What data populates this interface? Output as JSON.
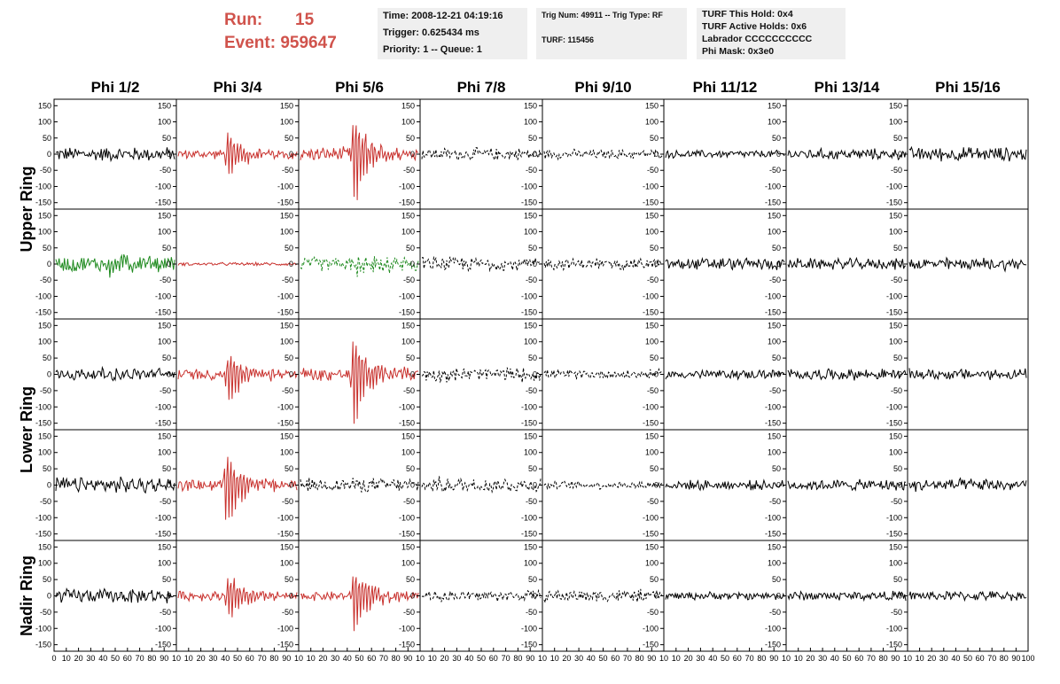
{
  "header": {
    "run_label": "Run:",
    "run_value": "15",
    "event_label": "Event:",
    "event_value": "959647",
    "time": "Time: 2008-12-21 04:19:16",
    "trigger": "Trigger: 0.625434 ms",
    "priority": "Priority: 1 -- Queue: 1",
    "trig_num": "Trig Num: 49911 -- Trig Type: RF",
    "turf": "TURF: 115456",
    "turf_this_hold": "TURF This Hold: 0x4",
    "turf_active_holds": "TURF Active Holds: 0x6",
    "labrador": "Labrador CCCCCCCCCC",
    "phi_mask": "Phi Mask: 0x3e0"
  },
  "colors": {
    "black": "#000000",
    "red": "#c8302c",
    "green": "#1e8a1e",
    "run_text": "#d0534c",
    "box_bg": "#efefef"
  },
  "chart_data": {
    "type": "line",
    "columns": [
      "Phi 1/2",
      "Phi 3/4",
      "Phi 5/6",
      "Phi 7/8",
      "Phi 9/10",
      "Phi 11/12",
      "Phi 13/14",
      "Phi 15/16"
    ],
    "rows": [
      "Upper Ring",
      "Lower Ring",
      "Nadir Ring"
    ],
    "row_label_spans": [
      2,
      2,
      1
    ],
    "ylim": [
      -170,
      170
    ],
    "xlim": [
      0,
      100
    ],
    "y_ticks": [
      -150,
      -100,
      -50,
      0,
      50,
      100,
      150
    ],
    "x_ticks_per_panel": [
      0,
      10,
      20,
      30,
      40,
      50,
      60,
      70,
      80,
      90,
      100
    ],
    "x_tick_labels_first": [
      "0",
      "10",
      "20",
      "30",
      "40",
      "50",
      "60",
      "70",
      "80",
      "90",
      "10"
    ],
    "x_tick_labels_middle": [
      "10",
      "20",
      "30",
      "40",
      "50",
      "60",
      "70",
      "80",
      "90",
      "10"
    ],
    "x_tick_labels_last": [
      "10",
      "20",
      "30",
      "40",
      "50",
      "60",
      "70",
      "80",
      "90",
      "100"
    ],
    "panels": [
      [
        {
          "color": "black",
          "style": "solid",
          "noise": 18,
          "pulse_center": 0,
          "pulse_amp": 0
        },
        {
          "color": "red",
          "style": "solid",
          "noise": 12,
          "pulse_center": 42,
          "pulse_amp": 90
        },
        {
          "color": "red",
          "style": "solid",
          "noise": 18,
          "pulse_center": 45,
          "pulse_amp": 175
        },
        {
          "color": "black",
          "style": "dashed",
          "noise": 16,
          "pulse_center": 0,
          "pulse_amp": 0
        },
        {
          "color": "black",
          "style": "dashed",
          "noise": 12,
          "pulse_center": 0,
          "pulse_amp": 0
        },
        {
          "color": "black",
          "style": "solid",
          "noise": 10,
          "pulse_center": 0,
          "pulse_amp": 0
        },
        {
          "color": "black",
          "style": "solid",
          "noise": 14,
          "pulse_center": 0,
          "pulse_amp": 0
        },
        {
          "color": "black",
          "style": "solid",
          "noise": 18,
          "pulse_center": 0,
          "pulse_amp": 0
        }
      ],
      [
        {
          "color": "green",
          "style": "solid",
          "noise": 20,
          "pulse_center": 45,
          "pulse_amp": 55
        },
        {
          "color": "red",
          "style": "solid",
          "noise": 4,
          "pulse_center": 0,
          "pulse_amp": 0
        },
        {
          "color": "green",
          "style": "dashed",
          "noise": 18,
          "pulse_center": 48,
          "pulse_amp": 45
        },
        {
          "color": "black",
          "style": "dashed",
          "noise": 18,
          "pulse_center": 0,
          "pulse_amp": 0
        },
        {
          "color": "black",
          "style": "dashed",
          "noise": 14,
          "pulse_center": 0,
          "pulse_amp": 0
        },
        {
          "color": "black",
          "style": "solid",
          "noise": 16,
          "pulse_center": 0,
          "pulse_amp": 0
        },
        {
          "color": "black",
          "style": "solid",
          "noise": 14,
          "pulse_center": 0,
          "pulse_amp": 0
        },
        {
          "color": "black",
          "style": "solid",
          "noise": 16,
          "pulse_center": 0,
          "pulse_amp": 0
        }
      ],
      [
        {
          "color": "black",
          "style": "solid",
          "noise": 16,
          "pulse_center": 0,
          "pulse_amp": 0
        },
        {
          "color": "red",
          "style": "solid",
          "noise": 14,
          "pulse_center": 42,
          "pulse_amp": 100
        },
        {
          "color": "red",
          "style": "solid",
          "noise": 18,
          "pulse_center": 45,
          "pulse_amp": 175
        },
        {
          "color": "black",
          "style": "dashed",
          "noise": 18,
          "pulse_center": 0,
          "pulse_amp": 0
        },
        {
          "color": "black",
          "style": "dashed",
          "noise": 12,
          "pulse_center": 0,
          "pulse_amp": 0
        },
        {
          "color": "black",
          "style": "solid",
          "noise": 12,
          "pulse_center": 0,
          "pulse_amp": 0
        },
        {
          "color": "black",
          "style": "solid",
          "noise": 14,
          "pulse_center": 0,
          "pulse_amp": 0
        },
        {
          "color": "black",
          "style": "solid",
          "noise": 14,
          "pulse_center": 0,
          "pulse_amp": 0
        }
      ],
      [
        {
          "color": "black",
          "style": "solid",
          "noise": 20,
          "pulse_center": 0,
          "pulse_amp": 0
        },
        {
          "color": "red",
          "style": "solid",
          "noise": 14,
          "pulse_center": 40,
          "pulse_amp": 150
        },
        {
          "color": "black",
          "style": "dashed",
          "noise": 18,
          "pulse_center": 0,
          "pulse_amp": 0
        },
        {
          "color": "black",
          "style": "dashed",
          "noise": 20,
          "pulse_center": 0,
          "pulse_amp": 0
        },
        {
          "color": "black",
          "style": "dashed",
          "noise": 10,
          "pulse_center": 0,
          "pulse_amp": 0
        },
        {
          "color": "black",
          "style": "solid",
          "noise": 12,
          "pulse_center": 0,
          "pulse_amp": 0
        },
        {
          "color": "black",
          "style": "solid",
          "noise": 14,
          "pulse_center": 0,
          "pulse_amp": 0
        },
        {
          "color": "black",
          "style": "solid",
          "noise": 16,
          "pulse_center": 0,
          "pulse_amp": 0
        }
      ],
      [
        {
          "color": "black",
          "style": "solid",
          "noise": 18,
          "pulse_center": 0,
          "pulse_amp": 0
        },
        {
          "color": "red",
          "style": "solid",
          "noise": 12,
          "pulse_center": 42,
          "pulse_amp": 90
        },
        {
          "color": "red",
          "style": "solid",
          "noise": 12,
          "pulse_center": 45,
          "pulse_amp": 120
        },
        {
          "color": "black",
          "style": "dashed",
          "noise": 14,
          "pulse_center": 0,
          "pulse_amp": 0
        },
        {
          "color": "black",
          "style": "dashed",
          "noise": 16,
          "pulse_center": 0,
          "pulse_amp": 0
        },
        {
          "color": "black",
          "style": "solid",
          "noise": 10,
          "pulse_center": 0,
          "pulse_amp": 0
        },
        {
          "color": "black",
          "style": "solid",
          "noise": 12,
          "pulse_center": 0,
          "pulse_amp": 0
        },
        {
          "color": "black",
          "style": "solid",
          "noise": 12,
          "pulse_center": 0,
          "pulse_amp": 0
        }
      ]
    ]
  }
}
